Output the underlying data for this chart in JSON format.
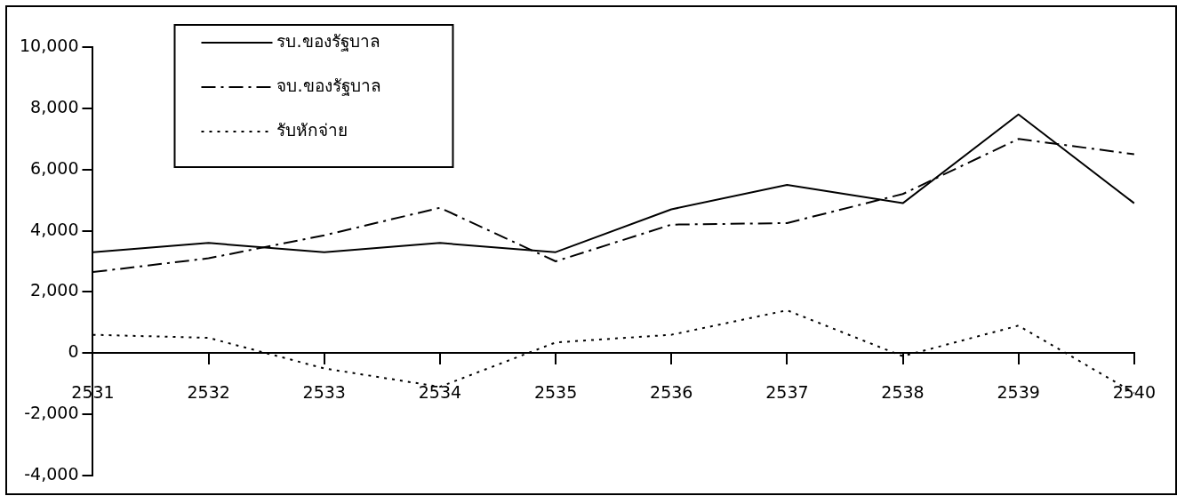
{
  "chart_data": {
    "type": "line",
    "categories": [
      "2531",
      "2532",
      "2533",
      "2534",
      "2535",
      "2536",
      "2537",
      "2538",
      "2539",
      "2540"
    ],
    "series": [
      {
        "name": "รบ.ของรัฐบาล",
        "color": "#000000",
        "line_style": "solid",
        "values": [
          3300,
          3600,
          3300,
          3600,
          3300,
          4700,
          5500,
          4900,
          7800,
          4900
        ]
      },
      {
        "name": "จบ.ของรัฐบาล",
        "color": "#000000",
        "line_style": "dashed",
        "values": [
          2650,
          3100,
          3850,
          4750,
          3000,
          4200,
          4250,
          5200,
          7000,
          6500
        ]
      },
      {
        "name": "รับหักจ่าย",
        "color": "#000000",
        "line_style": "dotted",
        "values": [
          600,
          500,
          -500,
          -1100,
          350,
          600,
          1400,
          -100,
          900,
          -1300
        ]
      }
    ],
    "ylim": [
      -4000,
      10000
    ],
    "yticks": [
      {
        "value": -4000,
        "label": "-4,000"
      },
      {
        "value": -2000,
        "label": "-2,000"
      },
      0,
      {
        "value": 2000,
        "label": "2,000"
      },
      {
        "value": 4000,
        "label": "4,000"
      },
      {
        "value": 6000,
        "label": "6,000"
      },
      {
        "value": 8000,
        "label": "8,000"
      },
      {
        "value": 10000,
        "label": "10,000"
      }
    ],
    "grid": false,
    "legend": "top left",
    "marker": "none"
  }
}
